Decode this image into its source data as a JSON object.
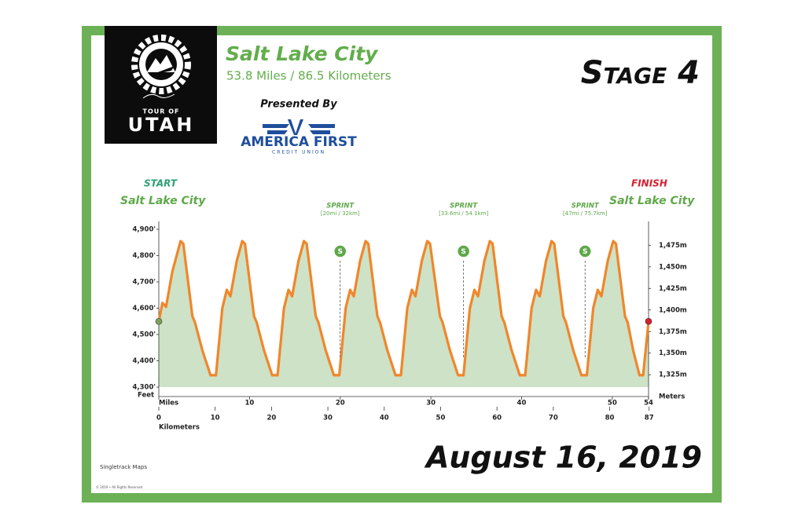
{
  "header": {
    "stage": "Stage 4",
    "date": "August 16, 2019"
  },
  "logo": {
    "top": "TOUR OF",
    "name": "UTAH"
  },
  "sponsor": {
    "heading": "Presented By",
    "name": "AMERICA FIRST",
    "sub": "CREDIT UNION"
  },
  "footer": {
    "maker": "Singletrack Maps",
    "rights": "© 2019 • All Rights Reserved"
  },
  "chart_data": {
    "type": "area",
    "title": "Salt Lake City",
    "subtitle": "53.8 Miles / 86.5 Kilometers",
    "x_label": "Miles",
    "x2_label": "Kilometers",
    "y_label": "Feet",
    "y2_label": "Meters",
    "line_color": "#f0862a",
    "fill_color": "#cde2c6",
    "start": {
      "label": "START",
      "place": "Salt Lake City",
      "color": "#2e9f74"
    },
    "finish": {
      "label": "FINISH",
      "place": "Salt Lake City",
      "color": "#d4202f"
    },
    "sprints": [
      {
        "label": "SPRINT",
        "detail": "[20mi / 32km]",
        "icon": "S",
        "x": 20
      },
      {
        "label": "SPRINT",
        "detail": "[33.6mi / 54.1km]",
        "icon": "S",
        "x": 33.6
      },
      {
        "label": "SPRINT",
        "detail": "[47mi / 75.7km]",
        "icon": "S",
        "x": 47
      }
    ],
    "x": [
      0,
      0.4,
      0.8,
      1.5,
      2.4,
      2.7,
      3.7,
      4.0,
      4.8,
      5.7,
      6.3,
      7.0,
      7.5,
      7.9,
      8.6,
      9.2,
      9.5,
      10.5,
      10.8,
      11.6,
      12.5,
      13.1,
      13.8,
      14.3,
      14.7,
      15.4,
      16.0,
      16.3,
      17.3,
      17.6,
      18.4,
      19.3,
      19.9,
      20.6,
      21.1,
      21.5,
      22.2,
      22.8,
      23.1,
      24.1,
      24.4,
      25.2,
      26.1,
      26.7,
      27.4,
      27.9,
      28.3,
      29.0,
      29.6,
      29.9,
      31.0,
      31.3,
      32.1,
      33.0,
      33.6,
      34.3,
      34.8,
      35.2,
      35.9,
      36.5,
      36.8,
      37.8,
      38.1,
      38.9,
      39.8,
      40.4,
      41.1,
      41.6,
      42.0,
      42.7,
      43.3,
      43.6,
      44.6,
      44.9,
      45.7,
      46.6,
      47.2,
      47.9,
      48.4,
      48.8,
      49.5,
      50.1,
      50.4,
      51.4,
      51.7,
      52.3,
      53.0,
      53.4,
      54.0
    ],
    "values": [
      4550,
      4620,
      4605,
      4740,
      4855,
      4845,
      4570,
      4545,
      4440,
      4345,
      4345,
      4600,
      4670,
      4645,
      4780,
      4855,
      4845,
      4570,
      4545,
      4440,
      4345,
      4345,
      4600,
      4670,
      4645,
      4780,
      4855,
      4845,
      4570,
      4545,
      4440,
      4345,
      4345,
      4600,
      4670,
      4645,
      4780,
      4855,
      4845,
      4570,
      4545,
      4440,
      4345,
      4345,
      4600,
      4670,
      4645,
      4780,
      4855,
      4845,
      4570,
      4545,
      4440,
      4345,
      4345,
      4600,
      4670,
      4645,
      4780,
      4855,
      4845,
      4570,
      4545,
      4440,
      4345,
      4345,
      4600,
      4670,
      4645,
      4780,
      4855,
      4845,
      4570,
      4545,
      4440,
      4345,
      4345,
      4600,
      4670,
      4645,
      4780,
      4855,
      4845,
      4570,
      4545,
      4440,
      4345,
      4345,
      4550
    ],
    "xlim": [
      0,
      54
    ],
    "xticks": [
      10,
      20,
      30,
      40,
      50,
      54
    ],
    "x2lim": [
      0,
      86.9
    ],
    "x2ticks": [
      0,
      10,
      20,
      30,
      40,
      50,
      60,
      70,
      80,
      87
    ],
    "ylim": [
      4300,
      4900
    ],
    "yticks": [
      {
        "value": 4900,
        "label": "4,900'"
      },
      {
        "value": 4800,
        "label": "4,800'"
      },
      {
        "value": 4700,
        "label": "4,700'"
      },
      {
        "value": 4600,
        "label": "4,600'"
      },
      {
        "value": 4500,
        "label": "4,500'"
      },
      {
        "value": 4400,
        "label": "4,400'"
      },
      {
        "value": 4300,
        "label": "4,300'"
      }
    ],
    "y2lim": [
      1310.64,
      1493.52
    ],
    "y2ticks": [
      {
        "value": 1475,
        "label": "1,475m"
      },
      {
        "value": 1450,
        "label": "1,450m"
      },
      {
        "value": 1425,
        "label": "1,425m"
      },
      {
        "value": 1400,
        "label": "1,400m"
      },
      {
        "value": 1375,
        "label": "1,375m"
      },
      {
        "value": 1350,
        "label": "1,350m"
      },
      {
        "value": 1325,
        "label": "1,325m"
      }
    ],
    "grid": false
  }
}
